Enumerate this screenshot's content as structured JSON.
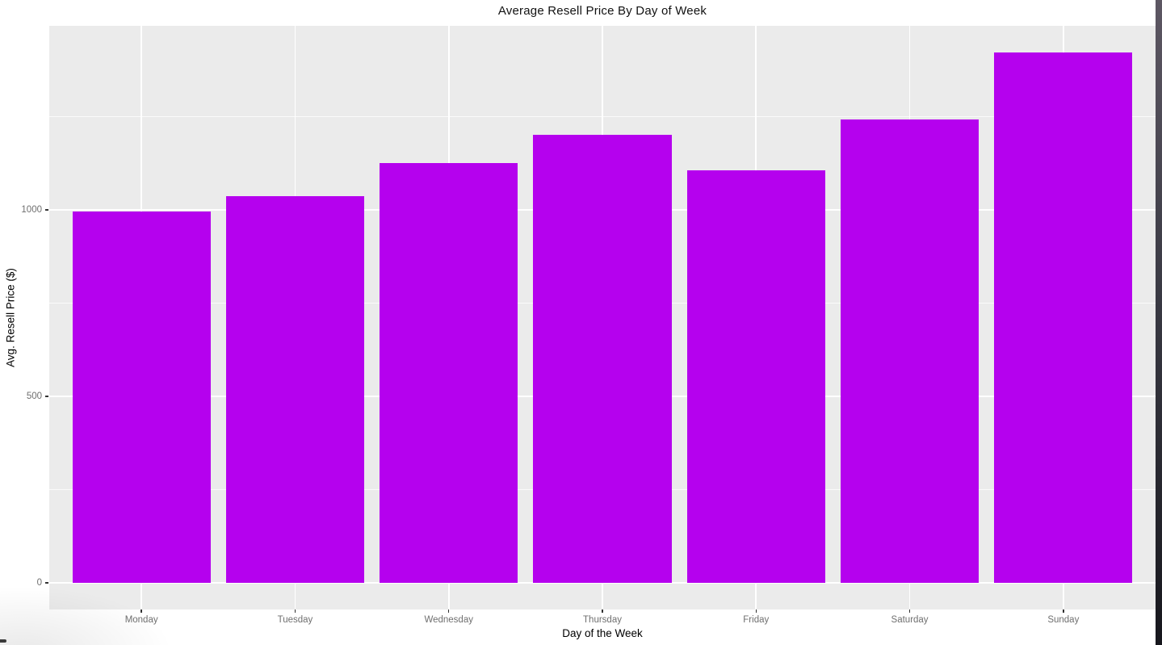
{
  "chart_data": {
    "type": "bar",
    "title": "Average Resell Price By Day of Week",
    "xlabel": "Day of the Week",
    "ylabel": "Avg. Resell Price ($)",
    "categories": [
      "Monday",
      "Tuesday",
      "Wednesday",
      "Thursday",
      "Friday",
      "Saturday",
      "Sunday"
    ],
    "values": [
      995,
      1037,
      1125,
      1202,
      1106,
      1243,
      1422
    ],
    "y_ticks": [
      0,
      500,
      1000
    ],
    "y_minor_ticks": [
      250,
      750,
      1250
    ],
    "ylim": [
      -71,
      1493
    ],
    "bar_color": "#B501EE",
    "panel_bg": "#EBEBEB",
    "grid_color": "#FFFFFF",
    "tick_label_color": "#6F6F6F",
    "axis_tick_color": "#333333",
    "grid": true,
    "legend_position": "none"
  },
  "desktop_edge": {
    "color_top": "#5D5763",
    "color_mid": "#3A3A44",
    "color_bottom": "#17171D"
  }
}
